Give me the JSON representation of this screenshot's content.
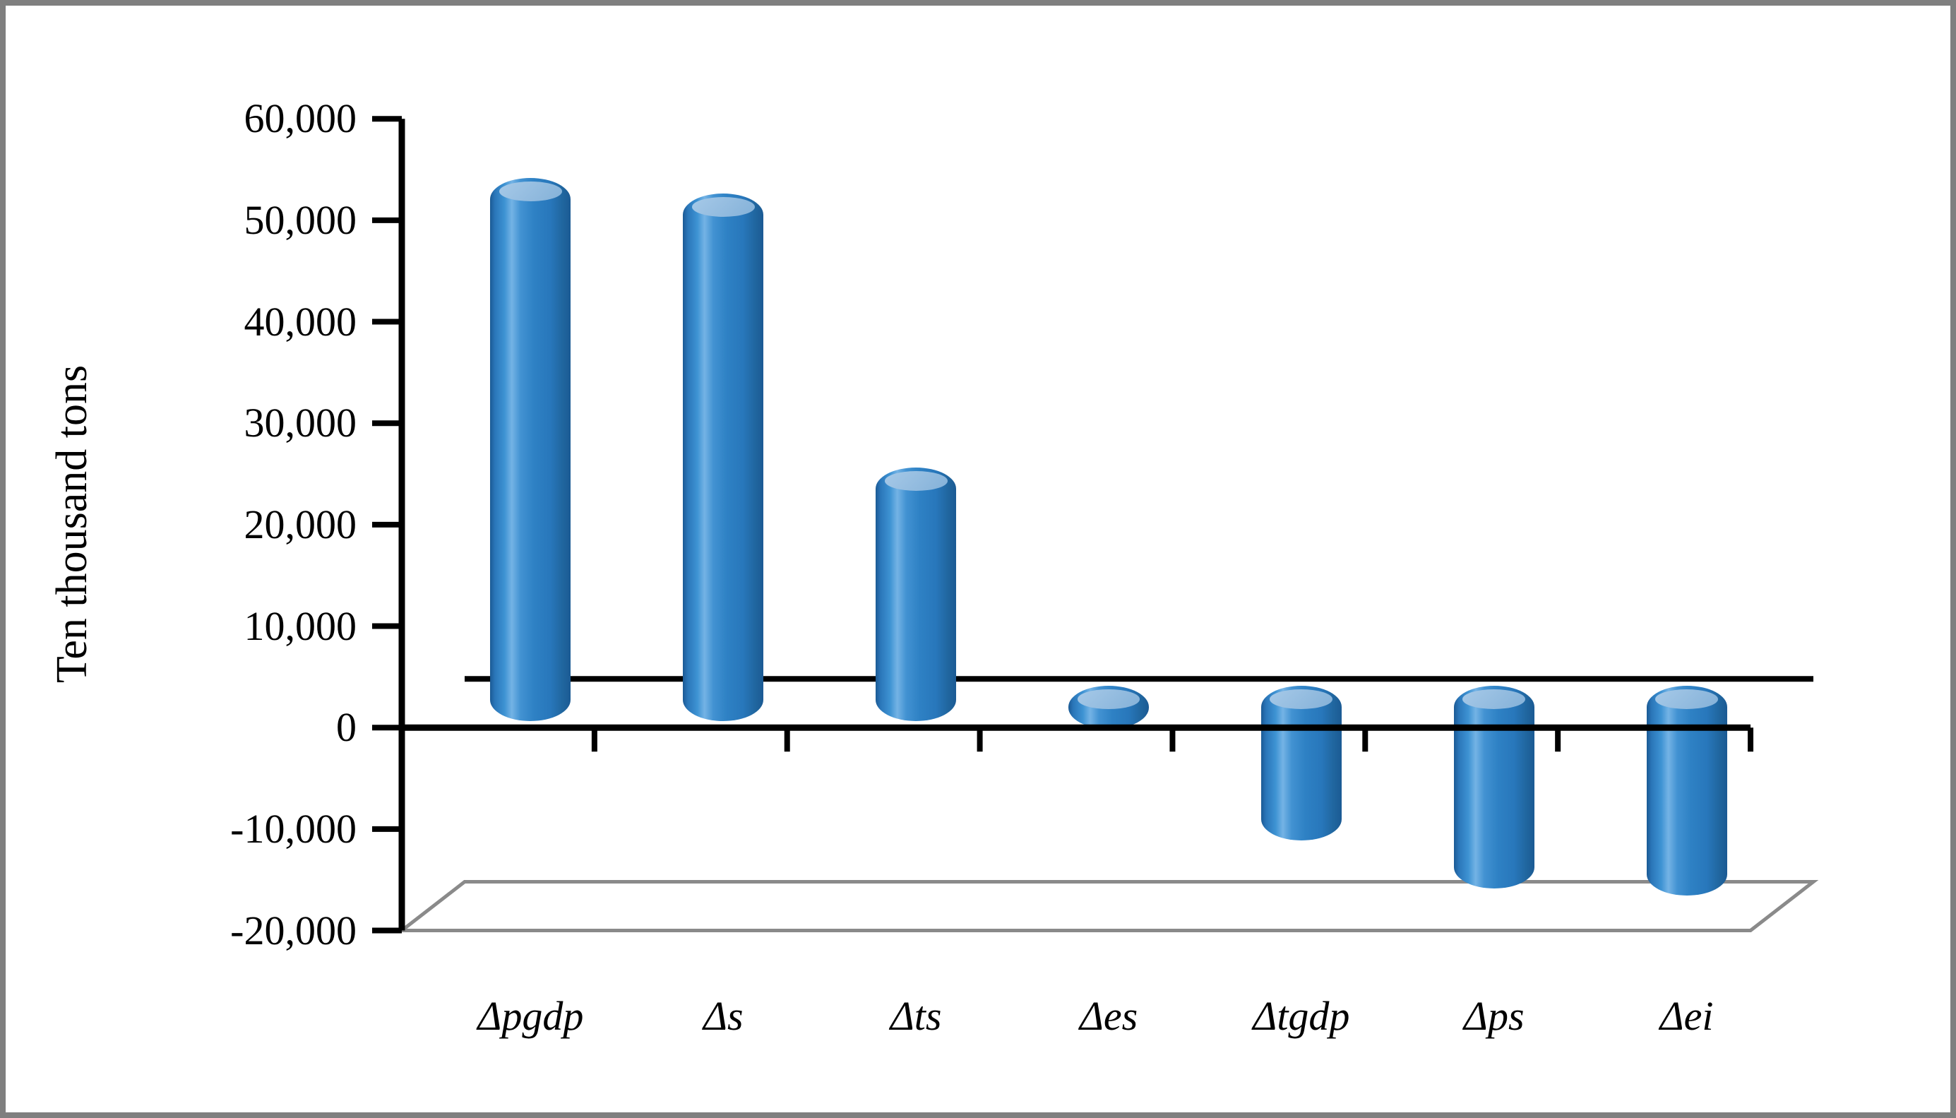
{
  "chart_data": {
    "type": "bar",
    "subtype": "3d-cylinder",
    "title": "",
    "xlabel": "",
    "ylabel": "Ten thousand tons",
    "categories": [
      "Δpgdp",
      "Δs",
      "Δts",
      "Δes",
      "Δtgdp",
      "Δps",
      "Δei"
    ],
    "values": [
      50000,
      48500,
      21500,
      -800,
      -11800,
      -16500,
      -17200
    ],
    "ylim": [
      -20000,
      60000
    ],
    "y_tick_step": 10000,
    "y_tick_labels": [
      "60,000",
      "50,000",
      "40,000",
      "30,000",
      "20,000",
      "10,000",
      "0",
      "-10,000",
      "-20,000"
    ],
    "y_tick_values": [
      60000,
      50000,
      40000,
      30000,
      20000,
      10000,
      0,
      -10000,
      -20000
    ],
    "grid": "off",
    "legend": "none",
    "series_name": ""
  },
  "colors": {
    "bar_fill": "#2e81c4",
    "bar_edge_dark": "#1b5a94",
    "bar_mid_dark": "#20669f",
    "bar_shade": "#2877bb",
    "bar_light": "#4292d2",
    "bar_highlight": "#74b3e5",
    "cap_light": "#a6c9e8",
    "cap_base": "#84b1d8",
    "axis": "#000000",
    "floor": "#8a8a8a",
    "frame_border": "#7f7f7f",
    "background": "#ffffff"
  }
}
